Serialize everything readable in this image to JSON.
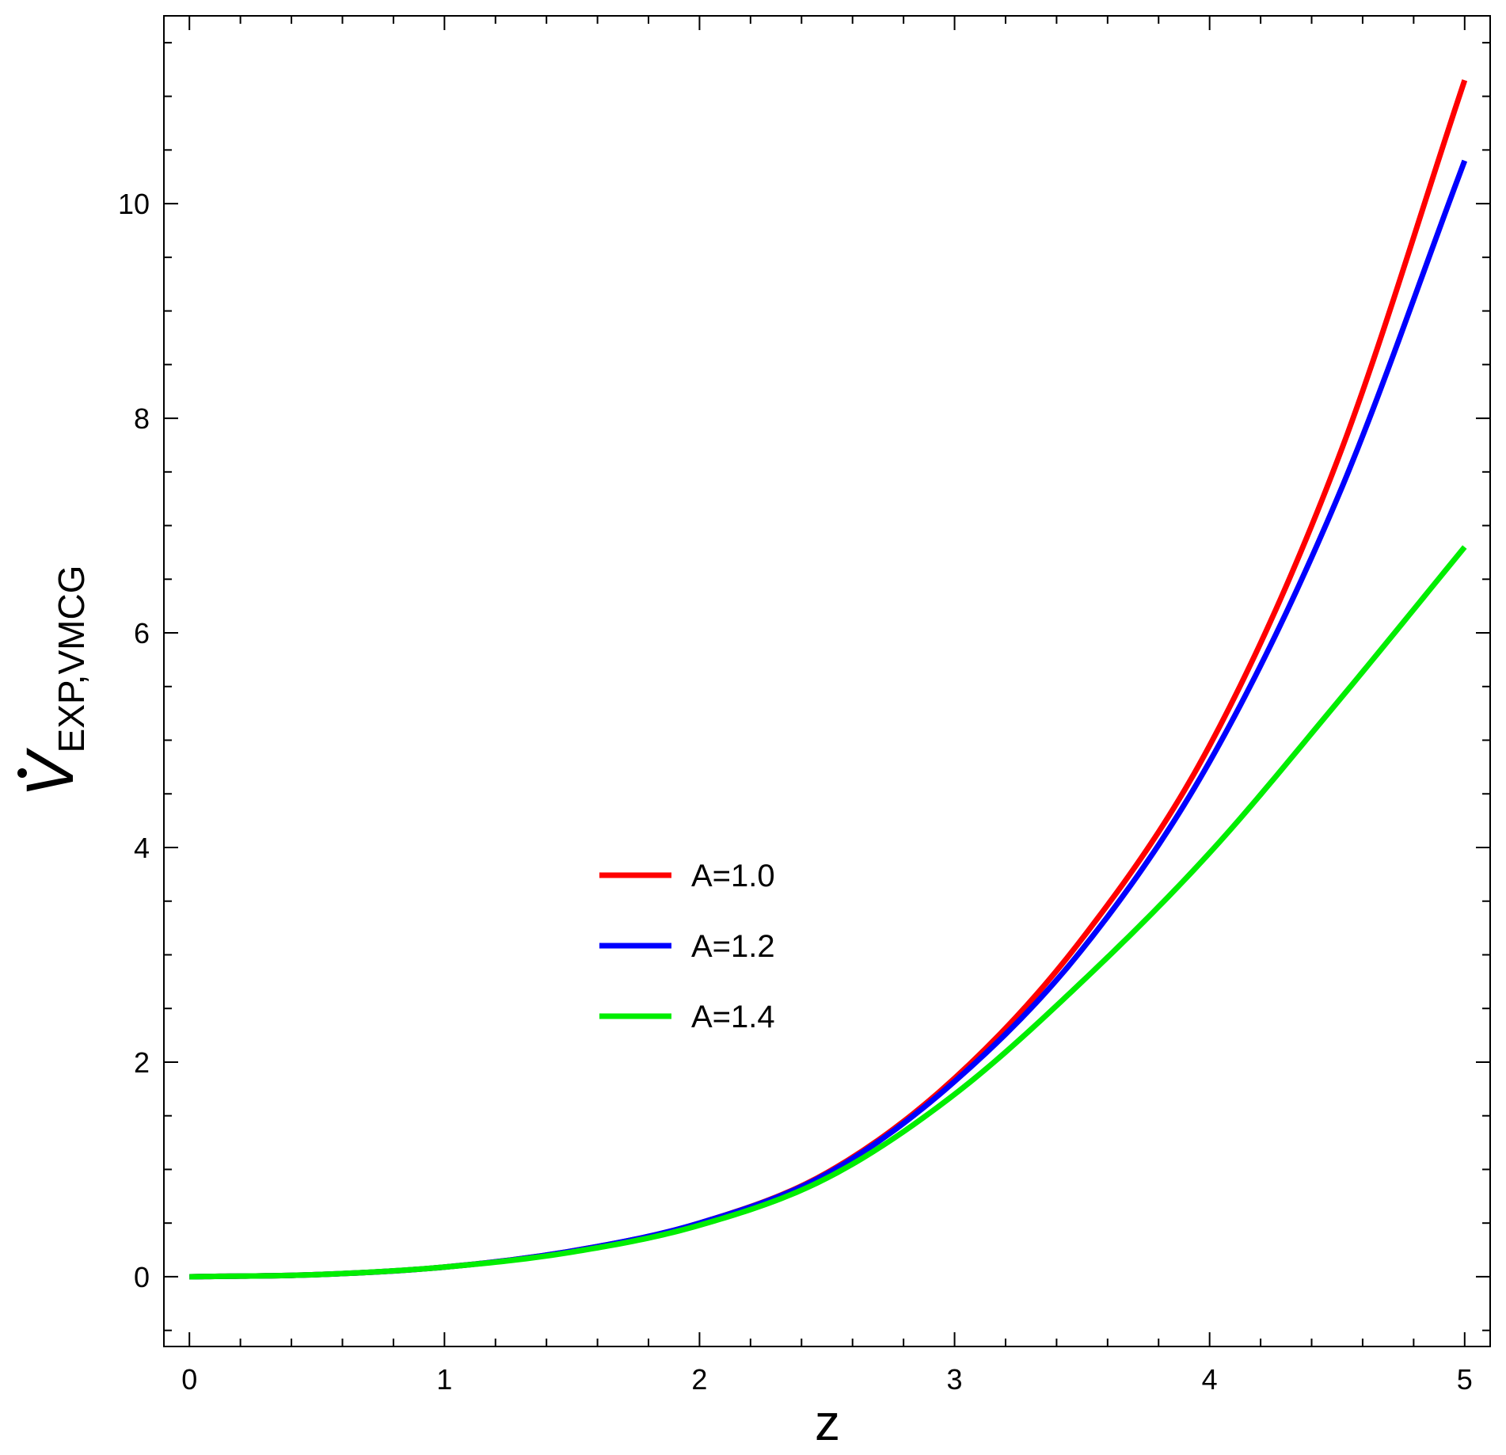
{
  "chart_data": {
    "type": "line",
    "xlabel": "z",
    "ylabel": {
      "base": "V",
      "accent": "dot",
      "subscript": "EXP,VMCG"
    },
    "xlim": [
      -0.1,
      5.1
    ],
    "ylim": [
      -0.65,
      11.75
    ],
    "x_ticks": [
      "0",
      "1",
      "2",
      "3",
      "4",
      "5"
    ],
    "y_ticks": [
      "0",
      "2",
      "4",
      "6",
      "8",
      "10"
    ],
    "grid": false,
    "legend_position": "center",
    "x": [
      0,
      0.5,
      1.0,
      1.5,
      2.0,
      2.5,
      3.0,
      3.5,
      4.0,
      4.5,
      5.0
    ],
    "series": [
      {
        "name": "A=1.0",
        "color": "#ff0000",
        "values": [
          0,
          0.02,
          0.09,
          0.24,
          0.5,
          0.97,
          1.85,
          3.15,
          4.95,
          7.6,
          11.15
        ]
      },
      {
        "name": "A=1.2",
        "color": "#0000ff",
        "values": [
          0,
          0.02,
          0.09,
          0.24,
          0.5,
          0.96,
          1.82,
          3.05,
          4.8,
          7.25,
          10.4
        ]
      },
      {
        "name": "A=1.4",
        "color": "#00ee00",
        "values": [
          0,
          0.02,
          0.09,
          0.23,
          0.48,
          0.92,
          1.7,
          2.75,
          3.95,
          5.35,
          6.8
        ]
      }
    ]
  }
}
